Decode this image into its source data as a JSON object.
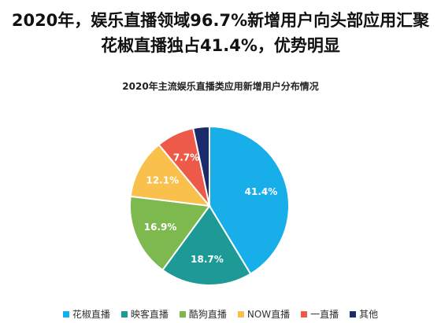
{
  "headline": {
    "line1": "2020年，娱乐直播领域96.7%新增用户向头部应用汇聚",
    "line2": "花椒直播独占41.4%，优势明显"
  },
  "chart_data": {
    "type": "pie",
    "title": "2020年主流娱乐直播类应用新增用户分布情况",
    "start_angle_deg": 0,
    "direction": "clockwise",
    "legend_position": "bottom",
    "slices": [
      {
        "name": "花椒直播",
        "value": 41.4,
        "label": "41.4%",
        "color": "#17AEEA"
      },
      {
        "name": "映客直播",
        "value": 18.7,
        "label": "18.7%",
        "color": "#1E9A96"
      },
      {
        "name": "酷狗直播",
        "value": 16.9,
        "label": "16.9%",
        "color": "#7DB94F"
      },
      {
        "name": "NOW直播",
        "value": 12.1,
        "label": "12.1%",
        "color": "#F9C04C"
      },
      {
        "name": "一直播",
        "value": 7.7,
        "label": "7.7%",
        "color": "#EE5A4A"
      },
      {
        "name": "其他",
        "value": 3.3,
        "label": "",
        "color": "#1B2A6B"
      }
    ]
  }
}
